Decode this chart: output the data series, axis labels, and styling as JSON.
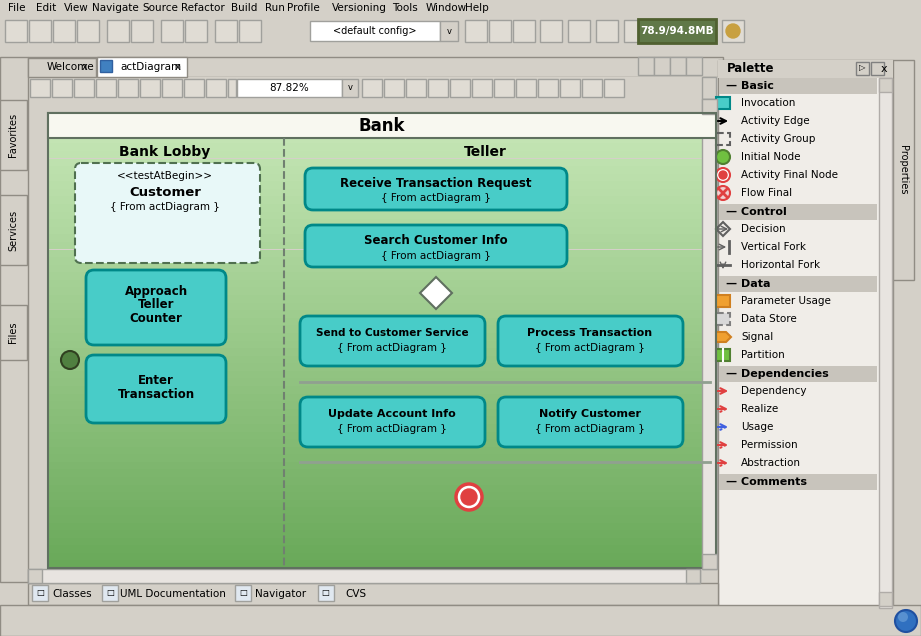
{
  "bg_color": "#d4d0c8",
  "menu_items": [
    "File",
    "Edit",
    "View",
    "Navigate",
    "Source",
    "Refactor",
    "Build",
    "Run",
    "Profile",
    "Versioning",
    "Tools",
    "Window",
    "Help"
  ],
  "zoom_text": "87.82%",
  "memory_text": "78.9/94.8MB",
  "tab1": "Welcome",
  "tab2": "actDiagram",
  "bank_title": "Bank",
  "lobby_title": "Bank Lobby",
  "teller_title": "Teller",
  "action_box_color": "#48ccc8",
  "action_box_edge": "#008888",
  "action_box_light": "#e0f8f8",
  "side_tabs": [
    "Favorites",
    "Services",
    "Files"
  ],
  "bottom_tabs": [
    "Classes",
    "UML Documentation",
    "Navigator",
    "CVS"
  ],
  "light_gray": "#d4d0c8",
  "medium_gray": "#c8c4bc",
  "panel_bg": "#e8e4dc",
  "palette_bg": "#f0ede8",
  "initial_node_color": "#508040",
  "final_node_outer": "#e04040",
  "diagram_border": "#607060",
  "divider_color": "#708070",
  "hline_color": "#90a090",
  "customer_box_bg": "#e8f8f8",
  "gradient_top": "#c8e8b8",
  "gradient_bottom": "#68a858",
  "toolbar_btn": "#e0dcd4",
  "white": "#ffffff",
  "memory_bg": "#607848"
}
